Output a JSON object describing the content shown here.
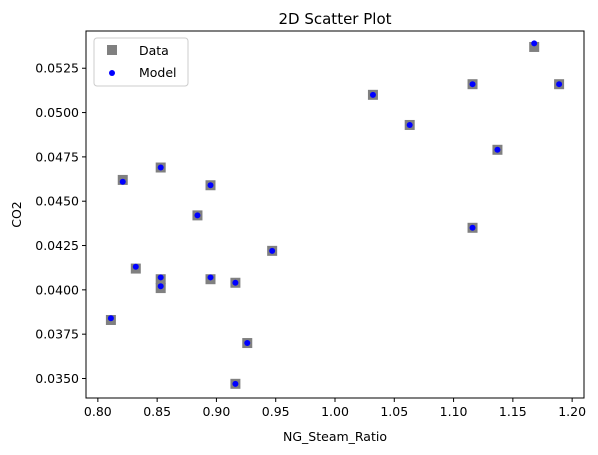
{
  "chart_data": {
    "type": "scatter",
    "title": "2D Scatter Plot",
    "xlabel": "NG_Steam_Ratio",
    "ylabel": "CO2",
    "xlim": [
      0.79,
      1.21
    ],
    "ylim": [
      0.0339,
      0.0546
    ],
    "xticks": [
      0.8,
      0.85,
      0.9,
      0.95,
      1.0,
      1.05,
      1.1,
      1.15,
      1.2
    ],
    "xtick_labels": [
      "0.80",
      "0.85",
      "0.90",
      "0.95",
      "1.00",
      "1.05",
      "1.10",
      "1.15",
      "1.20"
    ],
    "yticks": [
      0.035,
      0.0375,
      0.04,
      0.0425,
      0.045,
      0.0475,
      0.05,
      0.0525
    ],
    "ytick_labels": [
      "0.0350",
      "0.0375",
      "0.0400",
      "0.0425",
      "0.0450",
      "0.0475",
      "0.0500",
      "0.0525"
    ],
    "grid": false,
    "legend_position": "top-left",
    "series": [
      {
        "name": "Data",
        "marker": "square",
        "color": "#808080",
        "points": [
          {
            "x": 0.811,
            "y": 0.0383
          },
          {
            "x": 0.821,
            "y": 0.0462
          },
          {
            "x": 0.832,
            "y": 0.0412
          },
          {
            "x": 0.853,
            "y": 0.0469
          },
          {
            "x": 0.853,
            "y": 0.0406
          },
          {
            "x": 0.853,
            "y": 0.0401
          },
          {
            "x": 0.884,
            "y": 0.0442
          },
          {
            "x": 0.895,
            "y": 0.0459
          },
          {
            "x": 0.895,
            "y": 0.0406
          },
          {
            "x": 0.916,
            "y": 0.0404
          },
          {
            "x": 0.916,
            "y": 0.0347
          },
          {
            "x": 0.926,
            "y": 0.037
          },
          {
            "x": 0.947,
            "y": 0.0422
          },
          {
            "x": 1.032,
            "y": 0.051
          },
          {
            "x": 1.063,
            "y": 0.0493
          },
          {
            "x": 1.116,
            "y": 0.0516
          },
          {
            "x": 1.116,
            "y": 0.0435
          },
          {
            "x": 1.137,
            "y": 0.0479
          },
          {
            "x": 1.168,
            "y": 0.0537
          },
          {
            "x": 1.189,
            "y": 0.0516
          }
        ]
      },
      {
        "name": "Model",
        "marker": "circle",
        "color": "#0000ff",
        "points": [
          {
            "x": 0.811,
            "y": 0.0384
          },
          {
            "x": 0.821,
            "y": 0.0461
          },
          {
            "x": 0.832,
            "y": 0.0413
          },
          {
            "x": 0.853,
            "y": 0.0469
          },
          {
            "x": 0.853,
            "y": 0.0407
          },
          {
            "x": 0.853,
            "y": 0.0402
          },
          {
            "x": 0.884,
            "y": 0.0442
          },
          {
            "x": 0.895,
            "y": 0.0459
          },
          {
            "x": 0.895,
            "y": 0.0407
          },
          {
            "x": 0.916,
            "y": 0.0404
          },
          {
            "x": 0.916,
            "y": 0.0347
          },
          {
            "x": 0.926,
            "y": 0.037
          },
          {
            "x": 0.947,
            "y": 0.0422
          },
          {
            "x": 1.032,
            "y": 0.051
          },
          {
            "x": 1.063,
            "y": 0.0493
          },
          {
            "x": 1.116,
            "y": 0.0516
          },
          {
            "x": 1.116,
            "y": 0.0435
          },
          {
            "x": 1.137,
            "y": 0.0479
          },
          {
            "x": 1.168,
            "y": 0.0539
          },
          {
            "x": 1.189,
            "y": 0.0516
          }
        ]
      }
    ]
  }
}
